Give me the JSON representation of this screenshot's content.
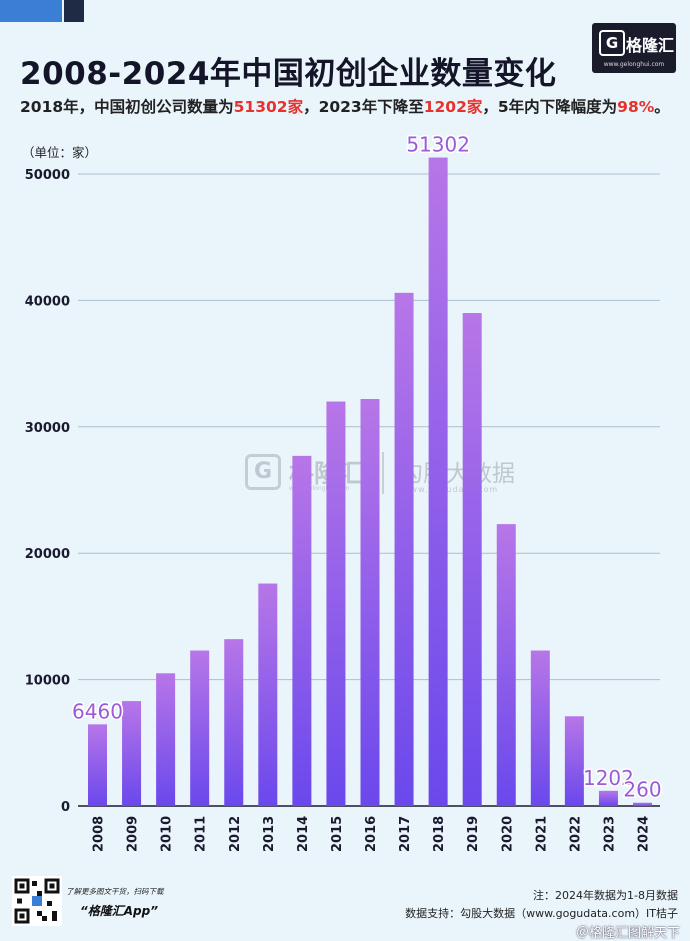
{
  "title": "2008-2024年中国初创企业数量变化",
  "subtitle": {
    "p1": "2018年，中国初创公司数量为",
    "h1": "51302家",
    "p2": "，2023年下降至",
    "h2": "1202家",
    "p3": "，5年内下降幅度为",
    "h3": "98%",
    "p4": "。"
  },
  "logo": {
    "mark": "G",
    "name": "格隆汇",
    "url": "www.gelonghui.com"
  },
  "watermark": {
    "mark": "G",
    "name1": "格隆汇",
    "url1": "www.gelonghui.com",
    "name2": "勾股大数据",
    "url2": "www.gogudata.com"
  },
  "chart_data": {
    "type": "bar",
    "unit_label": "（单位：家）",
    "categories": [
      "2008",
      "2009",
      "2010",
      "2011",
      "2012",
      "2013",
      "2014",
      "2015",
      "2016",
      "2017",
      "2018",
      "2019",
      "2020",
      "2021",
      "2022",
      "2023",
      "2024"
    ],
    "values": [
      6460,
      8300,
      10500,
      12300,
      13200,
      17600,
      27700,
      32000,
      32200,
      40600,
      51302,
      39000,
      22300,
      12300,
      7100,
      1202,
      260
    ],
    "yticks": [
      0,
      10000,
      20000,
      30000,
      40000,
      50000
    ],
    "ylim": [
      0,
      50000
    ],
    "data_labels": [
      {
        "category": "2008",
        "text": "6460"
      },
      {
        "category": "2018",
        "text": "51302"
      },
      {
        "category": "2023",
        "text": "1202"
      },
      {
        "category": "2024",
        "text": "260"
      }
    ],
    "grid": true,
    "bar_color_top": "#b776e8",
    "bar_color_bottom": "#6a48ec",
    "label_color": "#9b5ad8"
  },
  "footer": {
    "qr_caption": "了解更多图文干货，扫码下载",
    "app_name": "“格隆汇App”",
    "note": "注：2024年数据为1-8月数据",
    "source": "数据支持：勾股大数据（www.gogudata.com）IT桔子",
    "weibo": "＠格隆汇图解天下"
  }
}
